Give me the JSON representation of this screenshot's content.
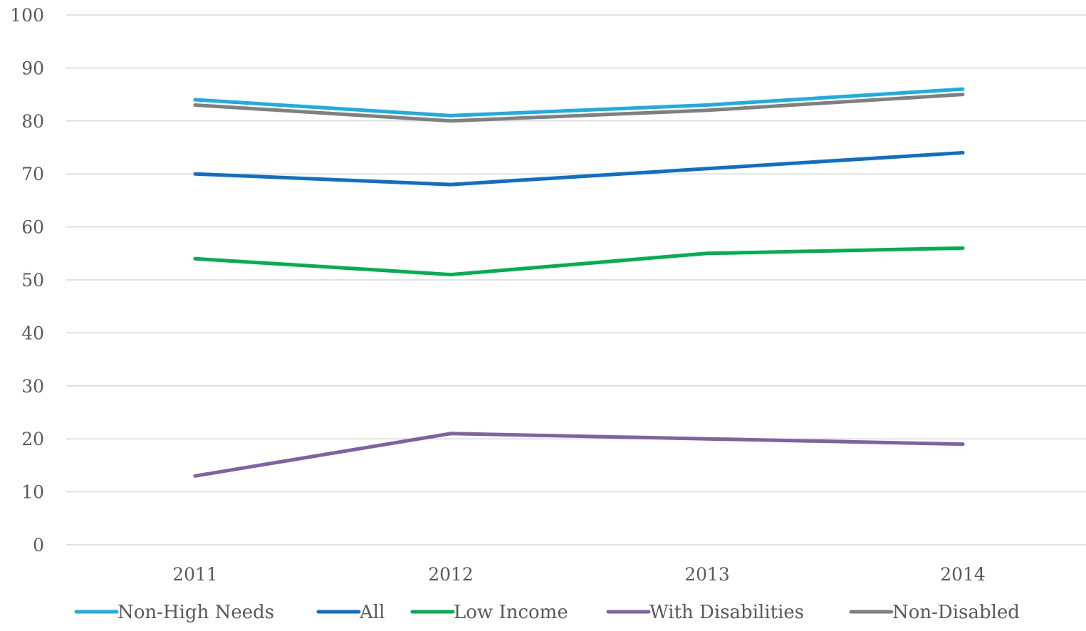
{
  "chart_data": {
    "type": "line",
    "categories": [
      "2011",
      "2012",
      "2013",
      "2014"
    ],
    "ylim": [
      0,
      100
    ],
    "yticks": [
      0,
      10,
      20,
      30,
      40,
      50,
      60,
      70,
      80,
      90,
      100
    ],
    "grid": true,
    "legend_position": "bottom",
    "series": [
      {
        "name": "Non-High Needs",
        "color": "#1CADE4",
        "values": [
          84,
          81,
          83,
          86
        ]
      },
      {
        "name": "All",
        "color": "#0F6FC6",
        "values": [
          70,
          68,
          71,
          74
        ]
      },
      {
        "name": "Low Income",
        "color": "#00B050",
        "values": [
          54,
          51,
          55,
          56
        ]
      },
      {
        "name": "With Disabilities",
        "color": "#7E62A1",
        "values": [
          13,
          21,
          20,
          19
        ]
      },
      {
        "name": "Non-Disabled",
        "color": "#808080",
        "values": [
          83,
          80,
          82,
          85
        ]
      }
    ]
  }
}
